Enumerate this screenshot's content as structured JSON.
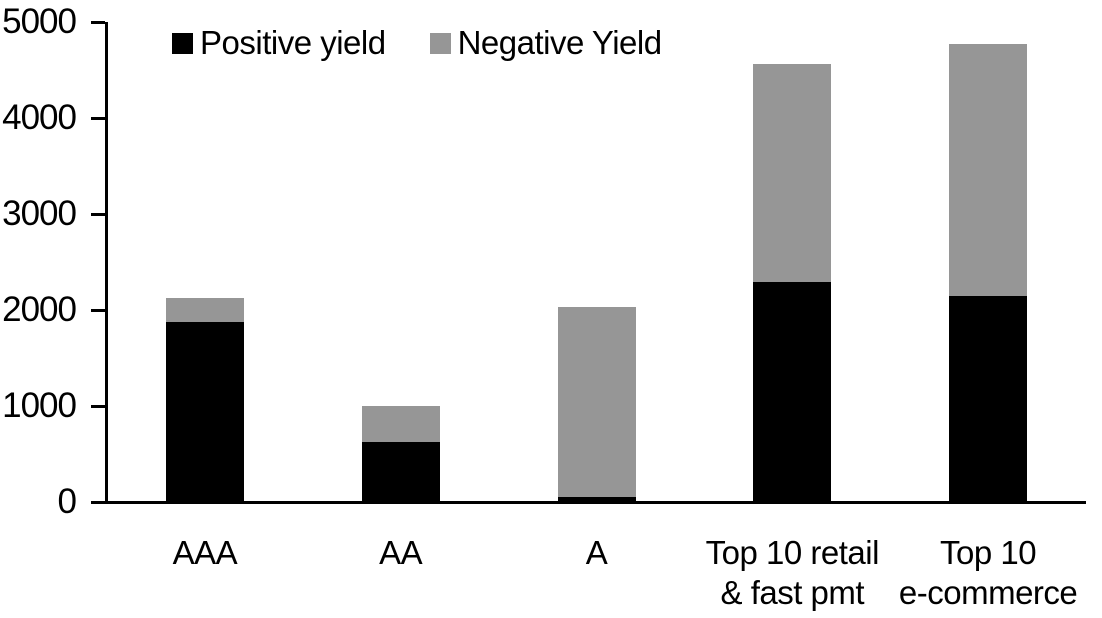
{
  "chart_data": {
    "type": "bar",
    "stacked": true,
    "title": "",
    "xlabel": "",
    "ylabel": "",
    "categories": [
      "AAA",
      "AA",
      "A",
      "Top 10 retail\n& fast pmt",
      "Top 10\ne-commerce"
    ],
    "series": [
      {
        "name": "Positive yield",
        "color": "#000000",
        "values": [
          1880,
          620,
          50,
          2290,
          2150
        ]
      },
      {
        "name": "Negative Yield",
        "color": "#969696",
        "values": [
          240,
          380,
          1980,
          2270,
          2620
        ]
      }
    ],
    "totals": [
      2120,
      1000,
      2030,
      4560,
      4770
    ],
    "ylim": [
      0,
      5000
    ],
    "ytick_step": 1000,
    "ytick_labels": [
      "0",
      "1000",
      "2000",
      "3000",
      "4000",
      "5000"
    ],
    "grid": false,
    "legend_position": "top-inside-left",
    "axis_color": "#000000",
    "background_color": "#ffffff"
  }
}
